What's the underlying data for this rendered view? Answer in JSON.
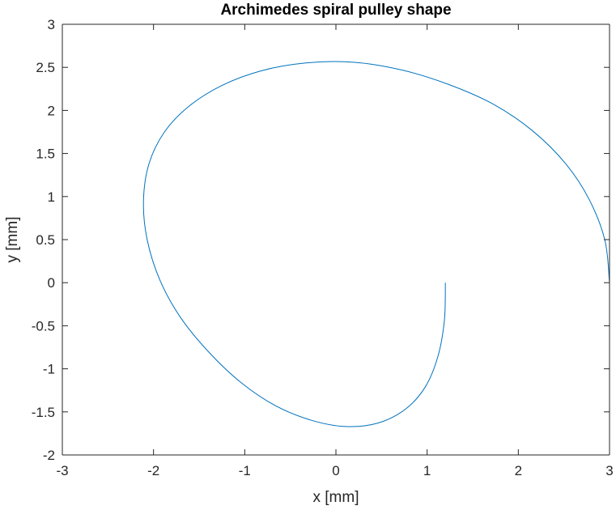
{
  "chart_data": {
    "type": "line",
    "title": "Archimedes spiral pulley shape",
    "xlabel": "x [mm]",
    "ylabel": "y [mm]",
    "xlim": [
      -3,
      3
    ],
    "ylim": [
      -2,
      3
    ],
    "xticks": [
      -3,
      -2,
      -1,
      0,
      1,
      2,
      3
    ],
    "xtick_labels": [
      "-3",
      "-2",
      "-1",
      "0",
      "1",
      "2",
      "3"
    ],
    "yticks": [
      -2,
      -1.5,
      -1,
      -0.5,
      0,
      0.5,
      1,
      1.5,
      2,
      2.5,
      3
    ],
    "ytick_labels": [
      "-2",
      "-1.5",
      "-1",
      "-0.5",
      "0",
      "0.5",
      "1",
      "1.5",
      "2",
      "2.5",
      "3"
    ],
    "grid": false,
    "line_color": "#0072BD",
    "series": [
      {
        "x": [
          3.0,
          2.95,
          2.78,
          2.52,
          2.16,
          1.73,
          1.24,
          0.72,
          0.19,
          -0.34,
          -0.82,
          -1.25,
          -1.61,
          -1.88,
          -2.05,
          -2.11,
          -2.07,
          -1.93,
          -1.7,
          -1.39,
          -1.04,
          -0.66,
          -0.26,
          0.11,
          0.46,
          0.76,
          0.98,
          1.12,
          1.19,
          1.2
        ],
        "y": [
          0.0,
          0.49,
          0.96,
          1.38,
          1.76,
          2.07,
          2.3,
          2.47,
          2.56,
          2.55,
          2.46,
          2.29,
          2.05,
          1.75,
          1.38,
          0.95,
          0.5,
          0.03,
          -0.41,
          -0.81,
          -1.16,
          -1.43,
          -1.6,
          -1.67,
          -1.63,
          -1.47,
          -1.21,
          -0.85,
          -0.43,
          0.0
        ]
      }
    ]
  }
}
